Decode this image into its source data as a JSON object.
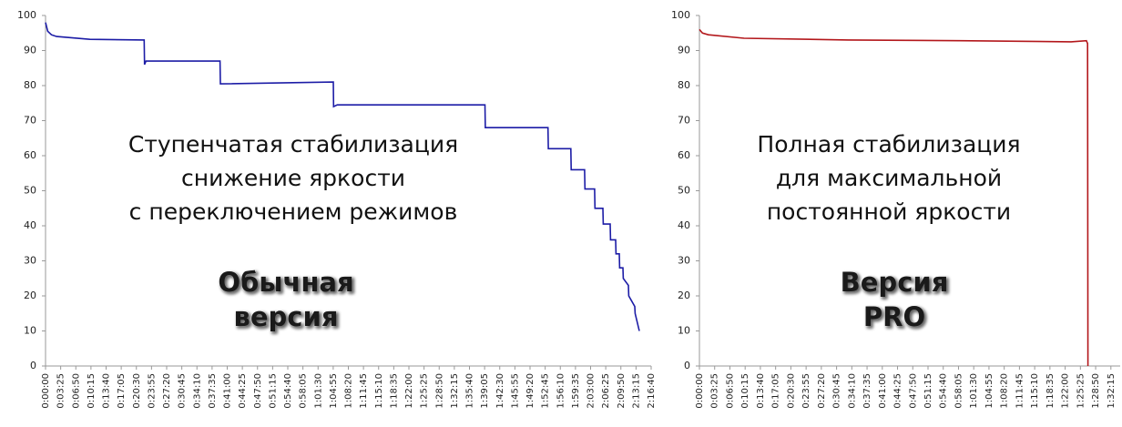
{
  "chart_data": [
    {
      "type": "line",
      "color": "#1c1ca6",
      "x": [
        0,
        30,
        80,
        150,
        600,
        1336,
        1340,
        1360,
        2363,
        2368,
        3896,
        3900,
        3950,
        5950,
        5955,
        6803,
        6808,
        7112,
        7117,
        7298,
        7303,
        7434,
        7439,
        7546,
        7551,
        7645,
        7650,
        7719,
        7724,
        7768,
        7773,
        7818,
        7823,
        7892,
        7897,
        7978,
        7983,
        8040
      ],
      "values": [
        98,
        95.5,
        94.5,
        94,
        93.2,
        93,
        86,
        87,
        87,
        80.5,
        81,
        74,
        74.5,
        74.5,
        68,
        68,
        62,
        62,
        56,
        56,
        50.5,
        50.5,
        45,
        45,
        40.5,
        40.5,
        36,
        36,
        32,
        32,
        28,
        28,
        25,
        23,
        20,
        17,
        15,
        10
      ],
      "xlim": [
        0,
        8200
      ],
      "ylim": [
        0,
        100
      ],
      "yticks": [
        0,
        10,
        20,
        30,
        40,
        50,
        60,
        70,
        80,
        90,
        100
      ],
      "xticks": [
        {
          "value": 0,
          "label": "0:00:00"
        },
        {
          "value": 205,
          "label": "0:03:25"
        },
        {
          "value": 410,
          "label": "0:06:50"
        },
        {
          "value": 615,
          "label": "0:10:15"
        },
        {
          "value": 820,
          "label": "0:13:40"
        },
        {
          "value": 1025,
          "label": "0:17:05"
        },
        {
          "value": 1230,
          "label": "0:20:30"
        },
        {
          "value": 1435,
          "label": "0:23:55"
        },
        {
          "value": 1640,
          "label": "0:27:20"
        },
        {
          "value": 1845,
          "label": "0:30:45"
        },
        {
          "value": 2050,
          "label": "0:34:10"
        },
        {
          "value": 2255,
          "label": "0:37:35"
        },
        {
          "value": 2460,
          "label": "0:41:00"
        },
        {
          "value": 2665,
          "label": "0:44:25"
        },
        {
          "value": 2870,
          "label": "0:47:50"
        },
        {
          "value": 3075,
          "label": "0:51:15"
        },
        {
          "value": 3280,
          "label": "0:54:40"
        },
        {
          "value": 3485,
          "label": "0:58:05"
        },
        {
          "value": 3690,
          "label": "1:01:30"
        },
        {
          "value": 3895,
          "label": "1:04:55"
        },
        {
          "value": 4100,
          "label": "1:08:20"
        },
        {
          "value": 4305,
          "label": "1:11:45"
        },
        {
          "value": 4510,
          "label": "1:15:10"
        },
        {
          "value": 4715,
          "label": "1:18:35"
        },
        {
          "value": 4920,
          "label": "1:22:00"
        },
        {
          "value": 5125,
          "label": "1:25:25"
        },
        {
          "value": 5330,
          "label": "1:28:50"
        },
        {
          "value": 5535,
          "label": "1:32:15"
        },
        {
          "value": 5740,
          "label": "1:35:40"
        },
        {
          "value": 5945,
          "label": "1:39:05"
        },
        {
          "value": 6150,
          "label": "1:42:30"
        },
        {
          "value": 6355,
          "label": "1:45:55"
        },
        {
          "value": 6560,
          "label": "1:49:20"
        },
        {
          "value": 6765,
          "label": "1:52:45"
        },
        {
          "value": 6970,
          "label": "1:56:10"
        },
        {
          "value": 7175,
          "label": "1:59:35"
        },
        {
          "value": 7380,
          "label": "2:03:00"
        },
        {
          "value": 7585,
          "label": "2:06:25"
        },
        {
          "value": 7790,
          "label": "2:09:50"
        },
        {
          "value": 7995,
          "label": "2:13:15"
        },
        {
          "value": 8200,
          "label": "2:16:40"
        }
      ],
      "annotations": [
        [
          "Ступенчатая стабилизация",
          "снижение яркости",
          "с переключением режимов"
        ],
        [
          "Обычная",
          "версия"
        ]
      ]
    },
    {
      "type": "line",
      "color": "#b3171b",
      "x": [
        0,
        40,
        120,
        600,
        2000,
        3500,
        5000,
        5206,
        5222,
        5226
      ],
      "values": [
        96,
        95,
        94.5,
        93.5,
        93,
        92.8,
        92.5,
        92.8,
        92,
        0
      ],
      "xlim": [
        0,
        5660
      ],
      "ylim": [
        0,
        100
      ],
      "yticks": [
        0,
        10,
        20,
        30,
        40,
        50,
        60,
        70,
        80,
        90,
        100
      ],
      "xticks": [
        {
          "value": 0,
          "label": "0:00:00"
        },
        {
          "value": 205,
          "label": "0:03:25"
        },
        {
          "value": 410,
          "label": "0:06:50"
        },
        {
          "value": 615,
          "label": "0:10:15"
        },
        {
          "value": 820,
          "label": "0:13:40"
        },
        {
          "value": 1025,
          "label": "0:17:05"
        },
        {
          "value": 1230,
          "label": "0:20:30"
        },
        {
          "value": 1435,
          "label": "0:23:55"
        },
        {
          "value": 1640,
          "label": "0:27:20"
        },
        {
          "value": 1845,
          "label": "0:30:45"
        },
        {
          "value": 2050,
          "label": "0:34:10"
        },
        {
          "value": 2255,
          "label": "0:37:35"
        },
        {
          "value": 2460,
          "label": "0:41:00"
        },
        {
          "value": 2665,
          "label": "0:44:25"
        },
        {
          "value": 2870,
          "label": "0:47:50"
        },
        {
          "value": 3075,
          "label": "0:51:15"
        },
        {
          "value": 3280,
          "label": "0:54:40"
        },
        {
          "value": 3485,
          "label": "0:58:05"
        },
        {
          "value": 3690,
          "label": "1:01:30"
        },
        {
          "value": 3895,
          "label": "1:04:55"
        },
        {
          "value": 4100,
          "label": "1:08:20"
        },
        {
          "value": 4305,
          "label": "1:11:45"
        },
        {
          "value": 4510,
          "label": "1:15:10"
        },
        {
          "value": 4715,
          "label": "1:18:35"
        },
        {
          "value": 4920,
          "label": "1:22:00"
        },
        {
          "value": 5125,
          "label": "1:25:25"
        },
        {
          "value": 5330,
          "label": "1:28:50"
        },
        {
          "value": 5535,
          "label": "1:32:15"
        }
      ],
      "annotations": [
        [
          "Полная стабилизация",
          "для максимальной",
          "постоянной яркости"
        ],
        [
          "Версия",
          "PRO"
        ]
      ]
    }
  ]
}
